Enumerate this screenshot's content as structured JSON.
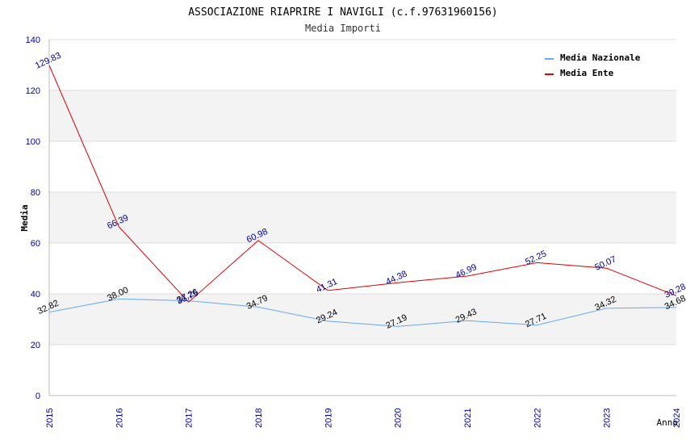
{
  "chart_data": {
    "type": "line",
    "title": "ASSOCIAZIONE RIAPRIRE I NAVIGLI (c.f.97631960156)",
    "subtitle": "Media Importi",
    "xlabel": "Anno",
    "ylabel": "Media",
    "categories": [
      "2015",
      "2016",
      "2017",
      "2018",
      "2019",
      "2020",
      "2021",
      "2022",
      "2023",
      "2024"
    ],
    "ylim": [
      0,
      140
    ],
    "yticks": [
      0,
      20,
      40,
      60,
      80,
      100,
      120,
      140
    ],
    "grid": true,
    "legend_position": "top-right",
    "series": [
      {
        "name": "Media Nazionale",
        "color": "#66aaee",
        "label_color": "#000000",
        "values": [
          32.82,
          38.0,
          37.26,
          34.79,
          29.24,
          27.19,
          29.43,
          27.71,
          34.32,
          34.68
        ],
        "labels": [
          "32.82",
          "38.00",
          "37.26",
          "34.79",
          "29.24",
          "27.19",
          "29.43",
          "27.71",
          "34.32",
          "34.68"
        ]
      },
      {
        "name": "Media Ente",
        "color": "#dd0000",
        "label_color": "#000099",
        "values": [
          129.83,
          66.39,
          36.75,
          60.98,
          41.31,
          44.38,
          46.99,
          52.25,
          50.07,
          39.28
        ],
        "labels": [
          "129.83",
          "66.39",
          "36.75",
          "60.98",
          "41.31",
          "44.38",
          "46.99",
          "52.25",
          "50.07",
          "39.28"
        ]
      }
    ]
  }
}
